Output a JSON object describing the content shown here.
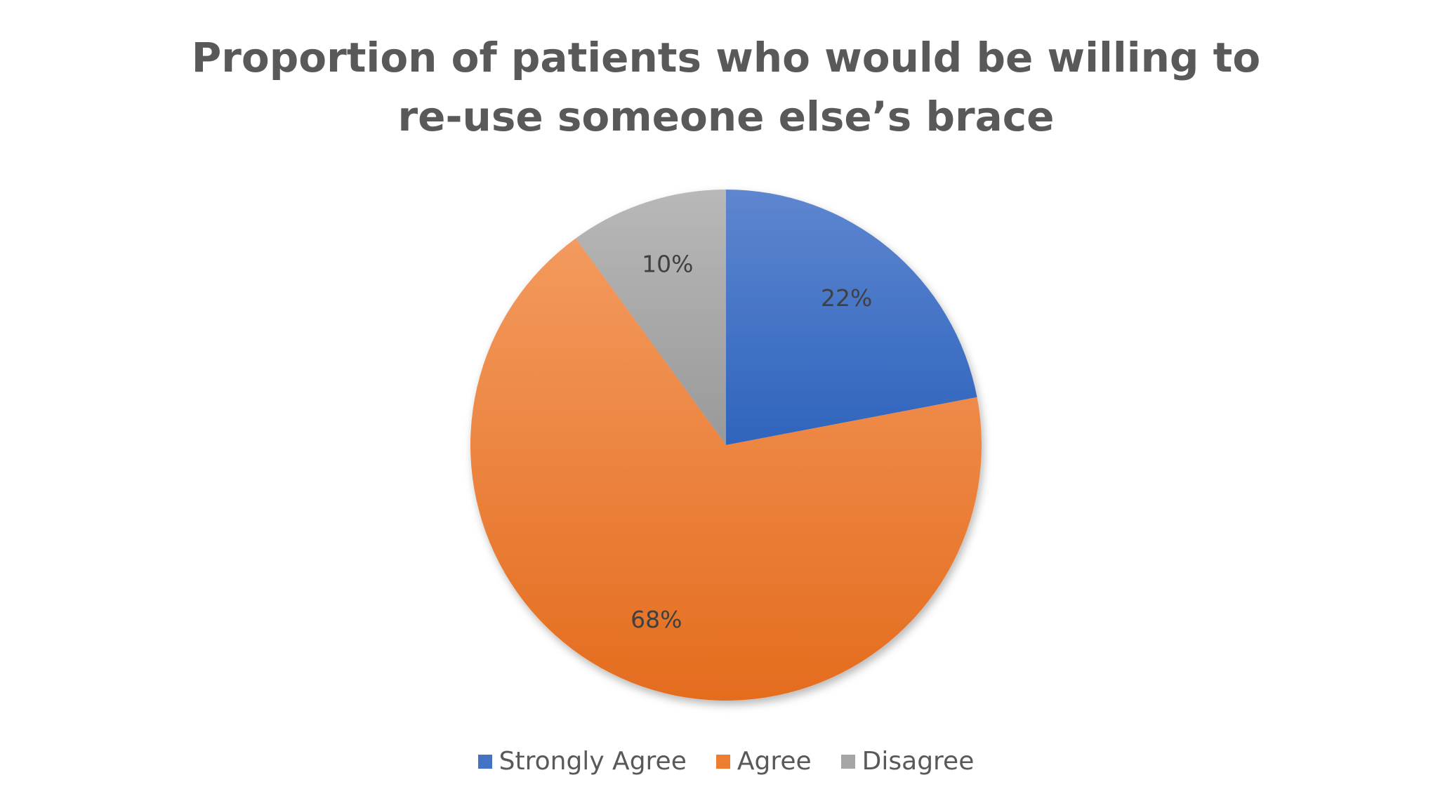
{
  "chart_data": {
    "type": "pie",
    "title": "Proportion of patients who would be willing to re-use someone else’s brace",
    "categories": [
      "Strongly Agree",
      "Agree",
      "Disagree"
    ],
    "values": [
      22,
      68,
      10
    ],
    "data_labels": [
      "22%",
      "68%",
      "10%"
    ],
    "colors": [
      "#4472C4",
      "#ED7D31",
      "#A5A5A5"
    ],
    "legend_position": "bottom",
    "start_angle_deg": 0,
    "direction": "clockwise"
  }
}
